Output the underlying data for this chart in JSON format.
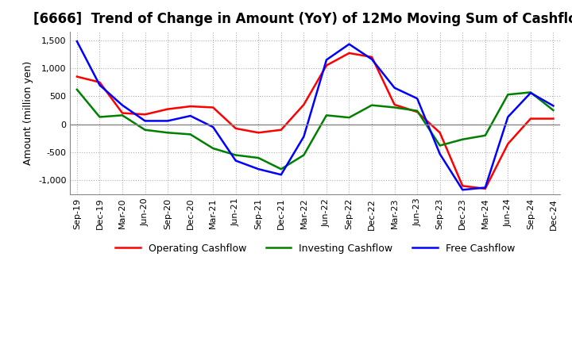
{
  "title": "[6666]  Trend of Change in Amount (YoY) of 12Mo Moving Sum of Cashflows",
  "ylabel": "Amount (million yen)",
  "ylim": [
    -1250,
    1650
  ],
  "yticks": [
    -1000,
    -500,
    0,
    500,
    1000,
    1500
  ],
  "x_labels": [
    "Sep-19",
    "Dec-19",
    "Mar-20",
    "Jun-20",
    "Sep-20",
    "Dec-20",
    "Mar-21",
    "Jun-21",
    "Sep-21",
    "Dec-21",
    "Mar-22",
    "Jun-22",
    "Sep-22",
    "Dec-22",
    "Mar-23",
    "Jun-23",
    "Sep-23",
    "Dec-23",
    "Mar-24",
    "Jun-24",
    "Sep-24",
    "Dec-24"
  ],
  "operating": [
    850,
    750,
    200,
    175,
    270,
    320,
    300,
    -75,
    -150,
    -100,
    350,
    1050,
    1270,
    1200,
    350,
    220,
    -150,
    -1100,
    -1150,
    -350,
    100,
    100
  ],
  "investing": [
    620,
    130,
    160,
    -100,
    -150,
    -180,
    -430,
    -550,
    -600,
    -800,
    -550,
    160,
    120,
    340,
    300,
    240,
    -380,
    -270,
    -200,
    530,
    570,
    250
  ],
  "free": [
    1480,
    700,
    340,
    60,
    60,
    150,
    -50,
    -650,
    -800,
    -900,
    -220,
    1150,
    1430,
    1160,
    650,
    460,
    -530,
    -1170,
    -1130,
    130,
    560,
    330
  ],
  "operating_color": "#ff0000",
  "investing_color": "#008000",
  "free_color": "#0000ff",
  "background_color": "#ffffff",
  "grid_color": "#b0b0b0",
  "title_fontsize": 12,
  "label_fontsize": 9,
  "tick_fontsize": 8
}
